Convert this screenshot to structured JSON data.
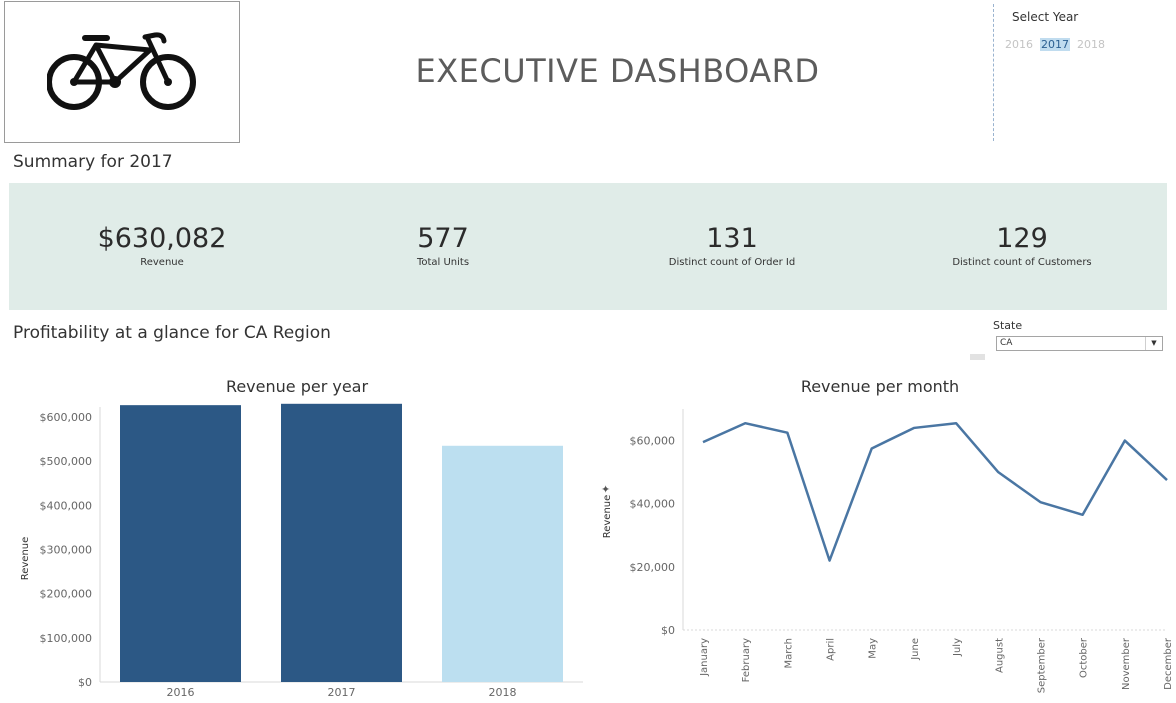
{
  "header": {
    "logo": "bicycle-icon",
    "title": "EXECUTIVE DASHBOARD"
  },
  "year_filter": {
    "label": "Select Year",
    "options": [
      "2016",
      "2017",
      "2018"
    ],
    "selected": "2017"
  },
  "summary": {
    "title": "Summary for 2017",
    "kpis": [
      {
        "value": "$630,082",
        "label": "Revenue"
      },
      {
        "value": "577",
        "label": "Total Units"
      },
      {
        "value": "131",
        "label": "Distinct count of Order Id"
      },
      {
        "value": "129",
        "label": "Distinct count of Customers"
      }
    ]
  },
  "profitability": {
    "title": "Profitability at a glance for CA Region"
  },
  "state_filter": {
    "label": "State",
    "value": "CA"
  },
  "colors": {
    "kpi_band": "#e0ece8",
    "bar_dark": "#2c5885",
    "bar_light": "#bcdff0",
    "line": "#4a76a3",
    "selected_year_bg": "#c0dcef"
  },
  "chart_data": [
    {
      "type": "bar",
      "title": "Revenue per year",
      "xlabel": "",
      "ylabel": "Revenue",
      "categories": [
        "2016",
        "2017",
        "2018"
      ],
      "values": [
        627000,
        630082,
        535000
      ],
      "highlight": [
        true,
        true,
        false
      ],
      "ylim": [
        0,
        650000
      ],
      "yticks": [
        0,
        100000,
        200000,
        300000,
        400000,
        500000,
        600000
      ],
      "ytick_labels": [
        "$0",
        "$100,000",
        "$200,000",
        "$300,000",
        "$400,000",
        "$500,000",
        "$600,000"
      ],
      "grid": false
    },
    {
      "type": "line",
      "title": "Revenue per month",
      "xlabel": "",
      "ylabel": "Revenue",
      "categories": [
        "January",
        "February",
        "March",
        "April",
        "May",
        "June",
        "July",
        "August",
        "September",
        "October",
        "November",
        "December"
      ],
      "values": [
        59500,
        65500,
        62500,
        22000,
        57500,
        64000,
        65500,
        50000,
        40500,
        36500,
        60000,
        47500
      ],
      "ylim": [
        0,
        70000
      ],
      "yticks": [
        0,
        20000,
        40000,
        60000
      ],
      "ytick_labels": [
        "$0",
        "$20,000",
        "$40,000",
        "$60,000"
      ],
      "grid": false
    }
  ]
}
